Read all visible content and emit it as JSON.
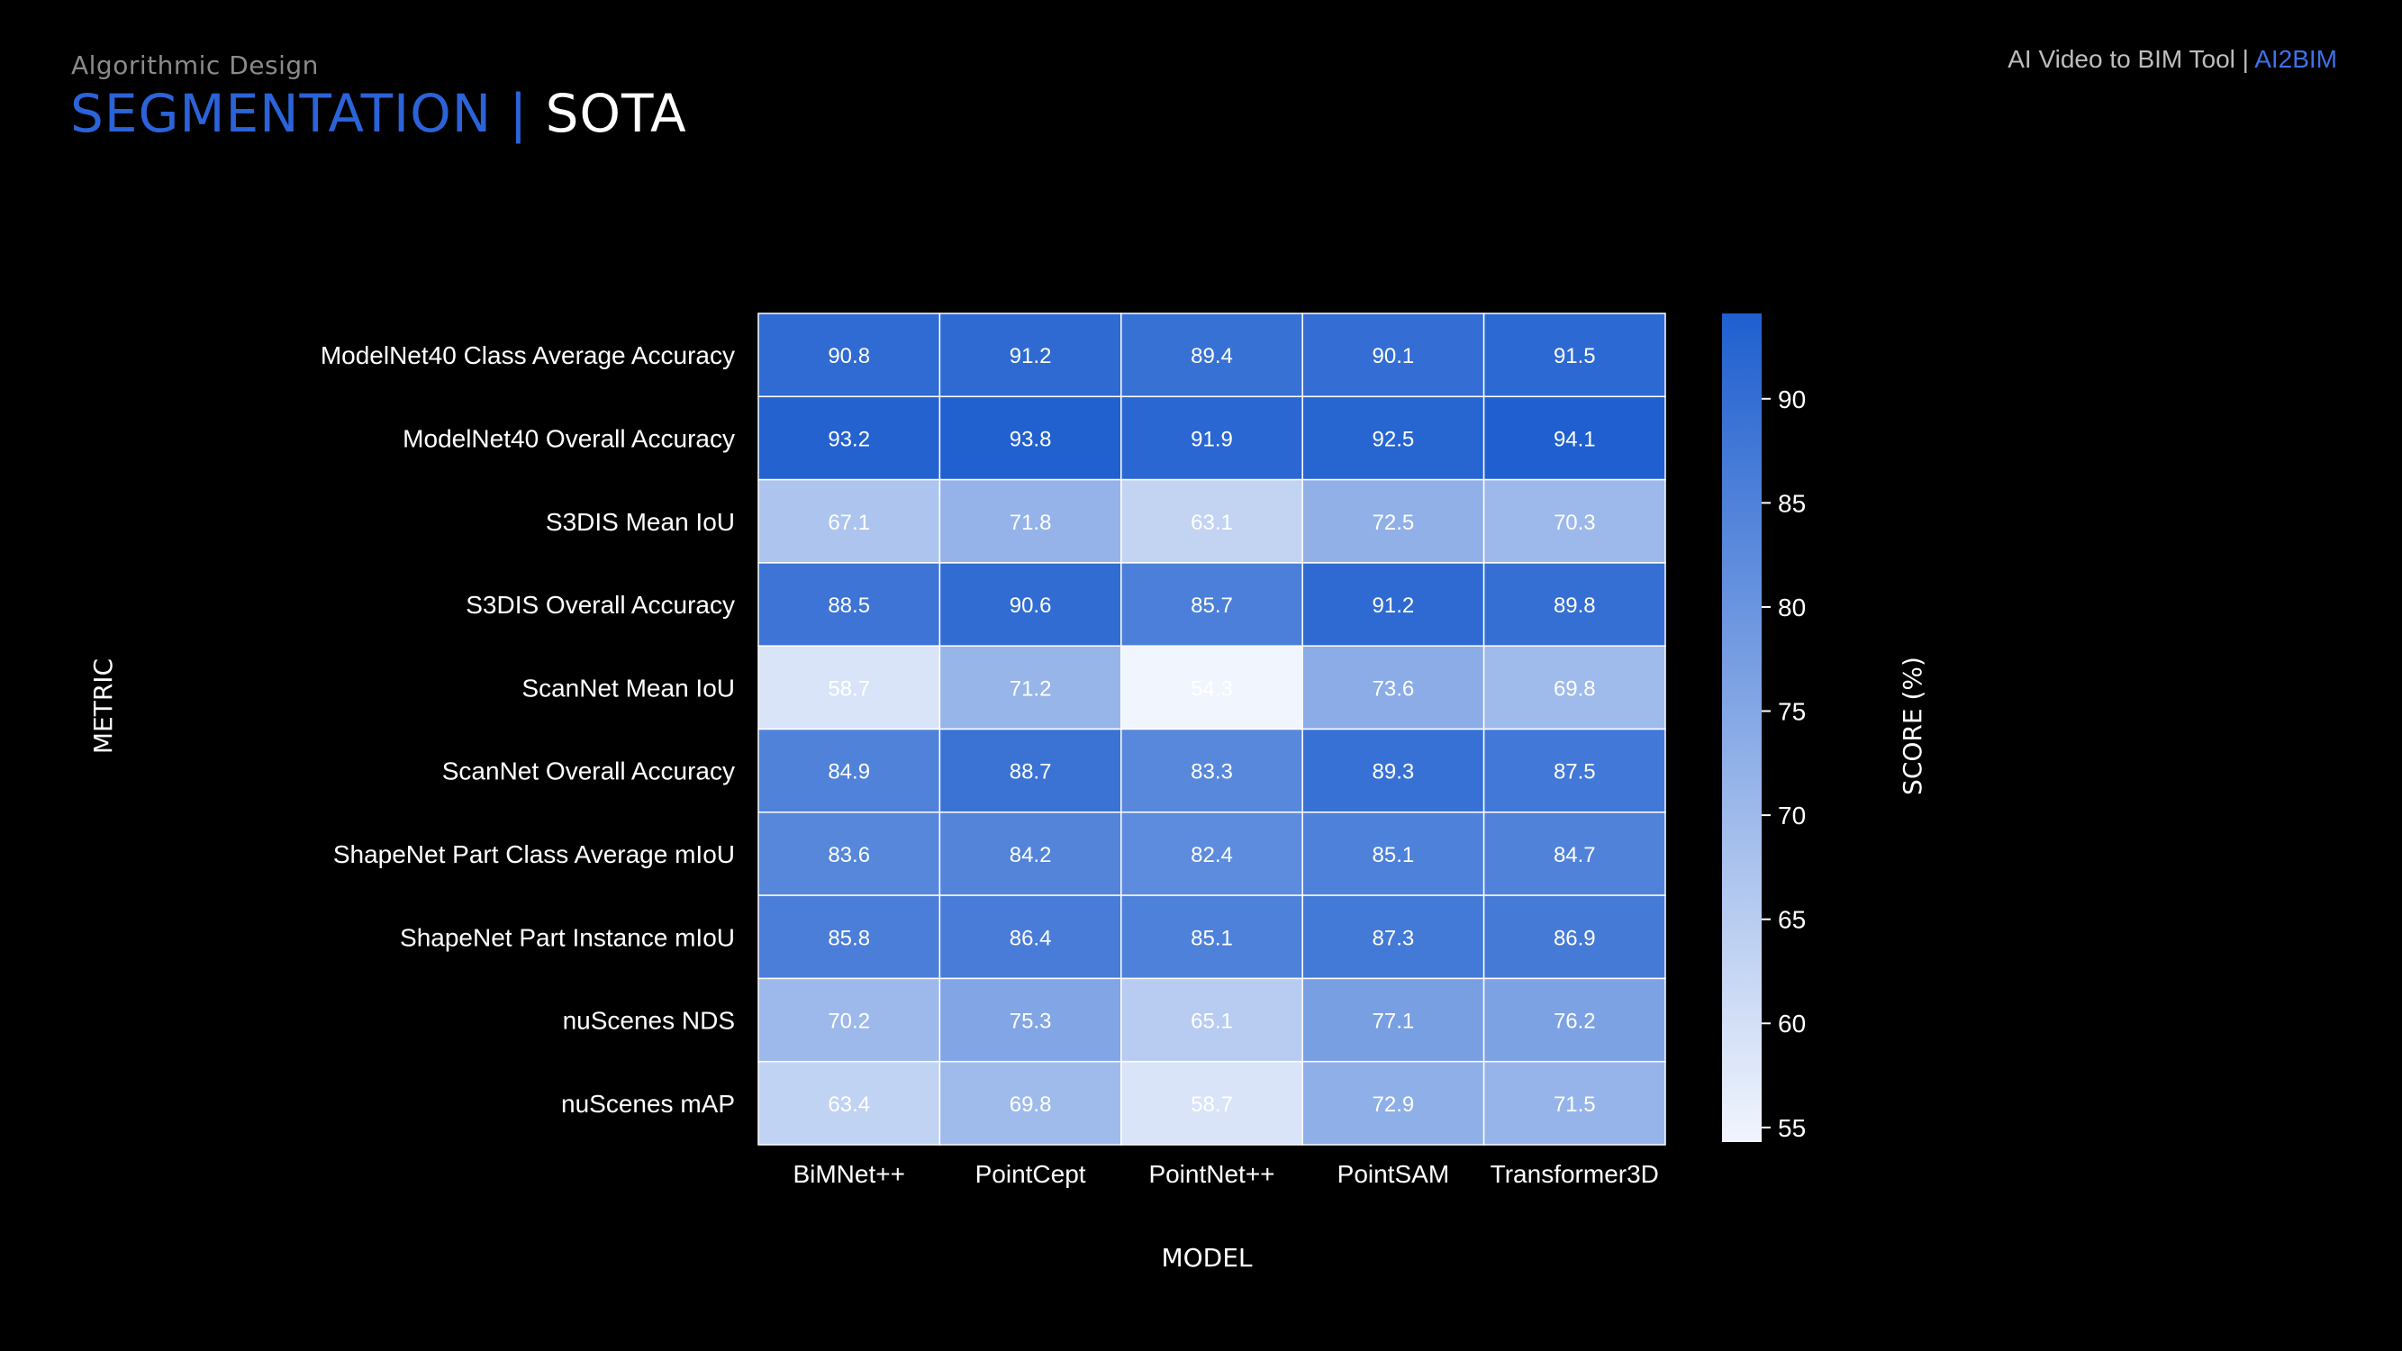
{
  "header": {
    "subtitle": "Algorithmic Design",
    "title_accent": "SEGMENTATION |",
    "title_main": "SOTA",
    "brand_text": "AI Video to BIM Tool |",
    "brand_accent": "AI2BIM"
  },
  "colors": {
    "accent": "#2b63d8",
    "background": "#000000",
    "cmap_low": "#f1f5fd",
    "cmap_high": "#1f5fcf"
  },
  "chart_data": {
    "type": "heatmap",
    "xlabel": "MODEL",
    "ylabel": "METRIC",
    "colorbar_label": "SCORE (%)",
    "colorbar_ticks": [
      55,
      60,
      65,
      70,
      75,
      80,
      85,
      90
    ],
    "colorbar_range": [
      54.3,
      94.1
    ],
    "columns": [
      "BiMNet++",
      "PointCept",
      "PointNet++",
      "PointSAM",
      "Transformer3D"
    ],
    "rows": [
      "ModelNet40 Class Average Accuracy",
      "ModelNet40 Overall Accuracy",
      "S3DIS Mean IoU",
      "S3DIS Overall Accuracy",
      "ScanNet Mean IoU",
      "ScanNet Overall Accuracy",
      "ShapeNet Part Class Average mIoU",
      "ShapeNet Part Instance mIoU",
      "nuScenes NDS",
      "nuScenes mAP"
    ],
    "values": [
      [
        90.8,
        91.2,
        89.4,
        90.1,
        91.5
      ],
      [
        93.2,
        93.8,
        91.9,
        92.5,
        94.1
      ],
      [
        67.1,
        71.8,
        63.1,
        72.5,
        70.3
      ],
      [
        88.5,
        90.6,
        85.7,
        91.2,
        89.8
      ],
      [
        58.7,
        71.2,
        54.3,
        73.6,
        69.8
      ],
      [
        84.9,
        88.7,
        83.3,
        89.3,
        87.5
      ],
      [
        83.6,
        84.2,
        82.4,
        85.1,
        84.7
      ],
      [
        85.8,
        86.4,
        85.1,
        87.3,
        86.9
      ],
      [
        70.2,
        75.3,
        65.1,
        77.1,
        76.2
      ],
      [
        63.4,
        69.8,
        58.7,
        72.9,
        71.5
      ]
    ]
  }
}
